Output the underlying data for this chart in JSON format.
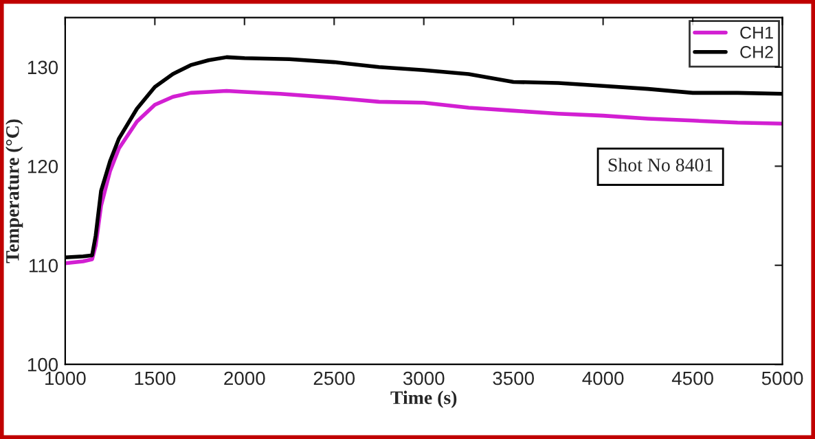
{
  "chart_data": {
    "type": "line",
    "xlabel": "Time (s)",
    "ylabel": "Temperature (°C)",
    "xlim": [
      1000,
      5000
    ],
    "xticks": [
      1000,
      1500,
      2000,
      2500,
      3000,
      3500,
      4000,
      4500,
      5000
    ],
    "ylim": [
      100,
      135
    ],
    "yticks": [
      100,
      110,
      120,
      130
    ],
    "grid": false,
    "legend": "top right",
    "marker": "none",
    "line_style": "solid",
    "annotations": [
      "Shot No 8401"
    ],
    "series": [
      {
        "name": "CH1",
        "color": "#d21fd2",
        "x": [
          1000,
          1100,
          1150,
          1170,
          1200,
          1250,
          1300,
          1400,
          1500,
          1600,
          1700,
          1800,
          1900,
          2000,
          2200,
          2500,
          2750,
          3000,
          3250,
          3500,
          3750,
          4000,
          4250,
          4500,
          4750,
          5000
        ],
        "values": [
          110.2,
          110.4,
          110.6,
          112,
          116,
          119.5,
          121.8,
          124.5,
          126.2,
          127.0,
          127.4,
          127.5,
          127.6,
          127.5,
          127.3,
          126.9,
          126.5,
          126.4,
          125.9,
          125.6,
          125.3,
          125.1,
          124.8,
          124.6,
          124.4,
          124.3
        ]
      },
      {
        "name": "CH2",
        "color": "#000000",
        "x": [
          1000,
          1100,
          1150,
          1170,
          1200,
          1250,
          1300,
          1400,
          1500,
          1600,
          1700,
          1800,
          1900,
          2000,
          2250,
          2500,
          2750,
          3000,
          3250,
          3500,
          3750,
          4000,
          4250,
          4500,
          4750,
          5000
        ],
        "values": [
          110.8,
          110.9,
          111.0,
          113,
          117.5,
          120.5,
          122.8,
          125.8,
          128,
          129.3,
          130.2,
          130.7,
          131.0,
          130.9,
          130.8,
          130.5,
          130,
          129.7,
          129.3,
          128.5,
          128.4,
          128.1,
          127.8,
          127.4,
          127.4,
          127.3
        ]
      }
    ]
  }
}
